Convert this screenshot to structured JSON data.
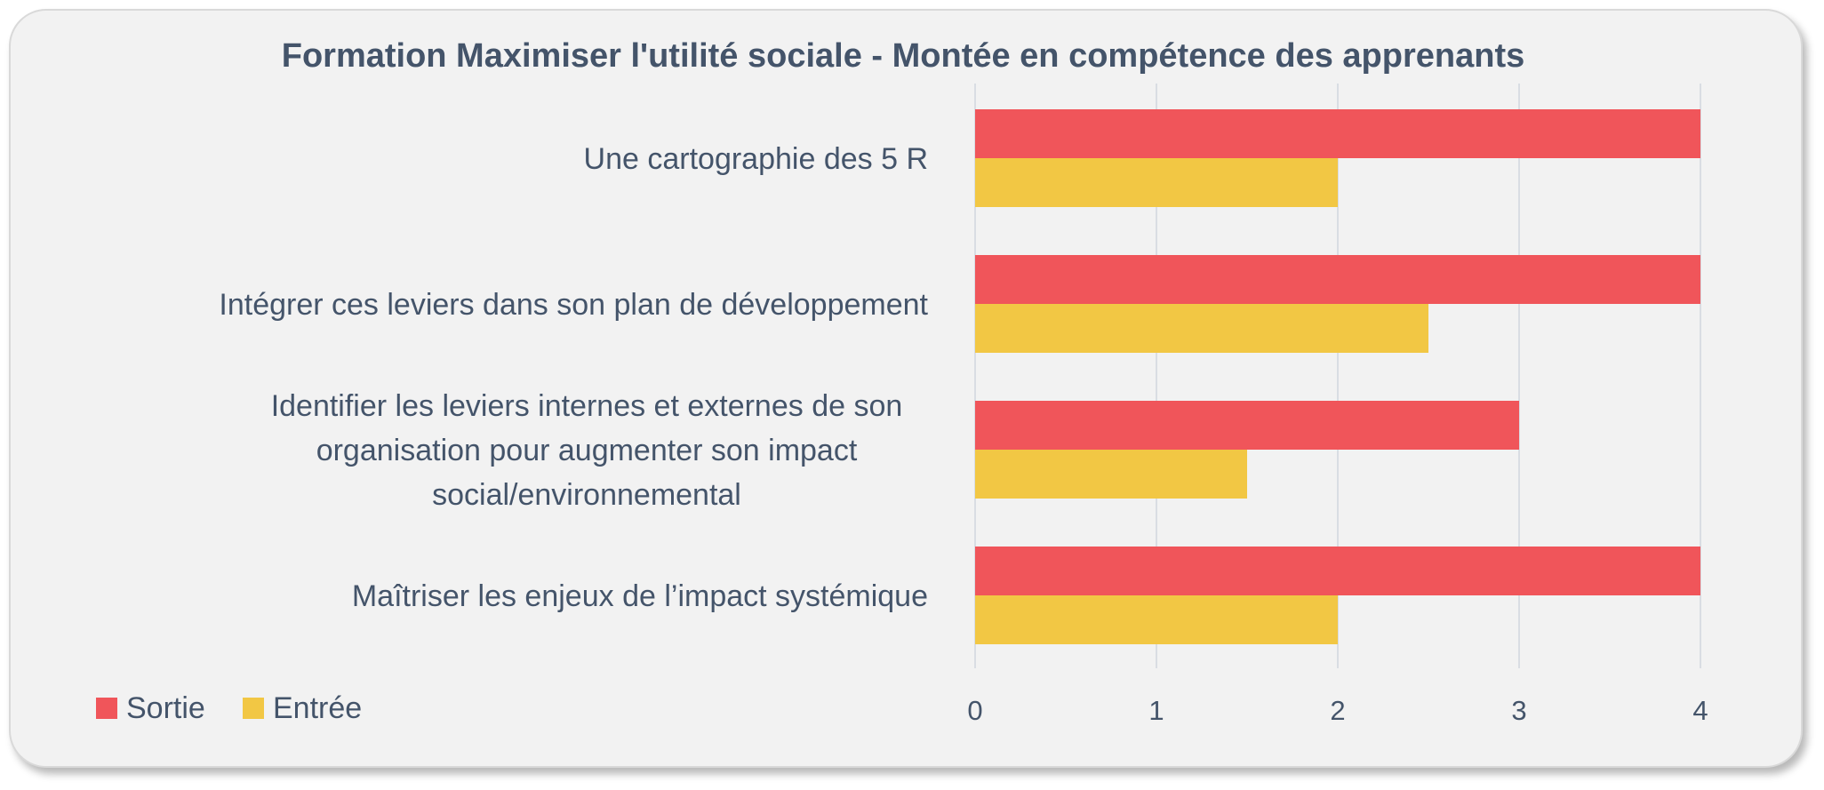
{
  "chart_data": {
    "type": "bar",
    "orientation": "horizontal",
    "title": "Formation Maximiser l'utilité sociale - Montée en compétence des apprenants",
    "categories": [
      "Une cartographie des 5 R",
      "Intégrer ces leviers dans son plan de développement",
      "Identifier les leviers internes et externes de son organisation pour augmenter son impact social/environnemental",
      "Maîtriser les enjeux de l’impact systémique"
    ],
    "category_lines": [
      [
        "Une cartographie des 5 R"
      ],
      [
        "Intégrer ces leviers dans son plan de développement"
      ],
      [
        "Identifier les leviers internes et externes de son",
        "organisation pour augmenter son impact",
        "social/environnemental"
      ],
      [
        "Maîtriser les enjeux de l’impact systémique"
      ]
    ],
    "series": [
      {
        "name": "Sortie",
        "color": "#f0555a",
        "values": [
          4,
          4,
          3,
          4
        ]
      },
      {
        "name": "Entrée",
        "color": "#f2c744",
        "values": [
          2,
          2.5,
          1.5,
          2
        ]
      }
    ],
    "xlim": [
      0,
      4
    ],
    "xticks": [
      "0",
      "1",
      "2",
      "3",
      "4"
    ],
    "grid": true,
    "legend_position": "bottom-left"
  }
}
